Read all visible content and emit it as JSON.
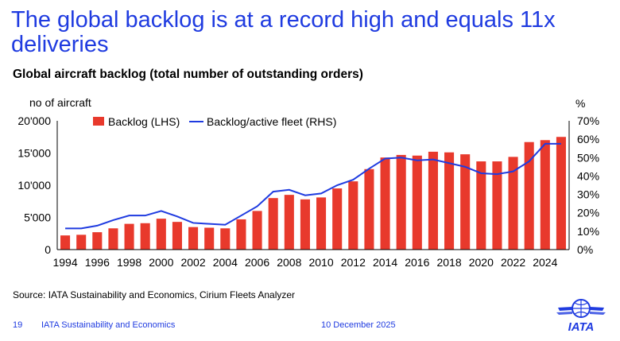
{
  "headline": "The global backlog is at a record high and equals 11x deliveries",
  "subtitle": "Global aircraft backlog (total number of outstanding orders)",
  "source": "Source: IATA Sustainability and Economics, Cirium Fleets Analyzer",
  "footer": {
    "page": "19",
    "org": "IATA Sustainability and Economics",
    "date": "10 December 2025"
  },
  "logo": {
    "text": "IATA"
  },
  "colors": {
    "bar": "#E8392C",
    "line": "#1F3BE0",
    "title": "#1F3BE0"
  },
  "chart_data": {
    "type": "bar",
    "title": "Global aircraft backlog (total number of outstanding orders)",
    "left_axis_label": "no of aircraft",
    "right_axis_label": "%",
    "left_ylim": [
      0,
      20000
    ],
    "right_ylim": [
      0,
      70
    ],
    "left_ticks": [
      "0",
      "5'000",
      "10'000",
      "15'000",
      "20'000"
    ],
    "right_ticks": [
      "0%",
      "10%",
      "20%",
      "30%",
      "40%",
      "50%",
      "60%",
      "70%"
    ],
    "x_tick_labels": [
      "1994",
      "1996",
      "1998",
      "2000",
      "2002",
      "2004",
      "2006",
      "2008",
      "2010",
      "2012",
      "2014",
      "2016",
      "2018",
      "2020",
      "2022",
      "2024"
    ],
    "categories": [
      "1994",
      "1995",
      "1996",
      "1997",
      "1998",
      "1999",
      "2000",
      "2001",
      "2002",
      "2003",
      "2004",
      "2005",
      "2006",
      "2007",
      "2008",
      "2009",
      "2010",
      "2011",
      "2012",
      "2013",
      "2014",
      "2015",
      "2016",
      "2017",
      "2018",
      "2019",
      "2020",
      "2021",
      "2022",
      "2023",
      "2024",
      "2025"
    ],
    "legend": {
      "placement": "top-left",
      "entries": [
        "Backlog (LHS)",
        "Backlog/active fleet (RHS)"
      ]
    },
    "series": [
      {
        "name": "Backlog (LHS)",
        "type": "bar",
        "axis": "left",
        "values": [
          2200,
          2300,
          2700,
          3300,
          4000,
          4100,
          4800,
          4300,
          3500,
          3400,
          3300,
          4700,
          6000,
          8000,
          8500,
          7800,
          8100,
          9500,
          10600,
          12500,
          14300,
          14700,
          14600,
          15200,
          15100,
          14800,
          13700,
          13700,
          14400,
          16700,
          17000,
          17500
        ]
      },
      {
        "name": "Backlog/active fleet (RHS)",
        "type": "line",
        "axis": "right",
        "values": [
          11.5,
          11.5,
          13,
          16,
          18.5,
          18.5,
          21,
          18,
          14.5,
          14,
          13.5,
          18.5,
          23.5,
          31.5,
          32.5,
          29.5,
          30.5,
          35,
          38,
          44,
          49.5,
          50,
          48.5,
          49,
          47,
          45,
          41.5,
          41,
          42.5,
          48,
          57.5,
          57.5
        ]
      }
    ]
  }
}
